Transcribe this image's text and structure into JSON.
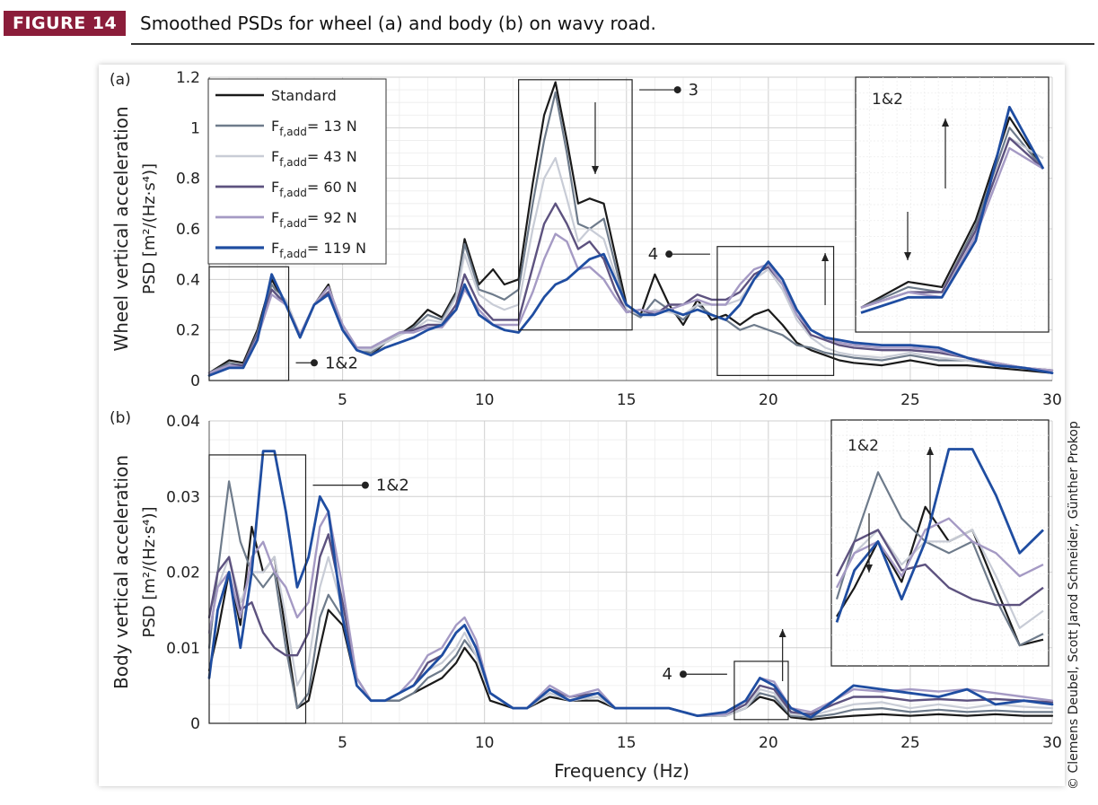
{
  "figure": {
    "tag": "FIGURE 14",
    "caption": "Smoothed PSDs for wheel (a) and body (b) on wavy road.",
    "credit": "© Clemens Deubel, Scott Jarod Schneider, Günther Prokop"
  },
  "colors": {
    "tag_background": "#8b1d3a",
    "standard": "#1a1a1a",
    "f13": "#6e7b8b",
    "f43": "#c8ccd6",
    "f60": "#5d527f",
    "f92": "#a59ac4",
    "f119": "#1f4da1"
  },
  "legend": [
    {
      "main": "Standard",
      "sub": "",
      "tail": ""
    },
    {
      "main": "F",
      "sub": "f,add",
      "tail": "= 13 N"
    },
    {
      "main": "F",
      "sub": "f,add",
      "tail": "= 43 N"
    },
    {
      "main": "F",
      "sub": "f,add",
      "tail": "= 60 N"
    },
    {
      "main": "F",
      "sub": "f,add",
      "tail": "= 92 N"
    },
    {
      "main": "F",
      "sub": "f,add",
      "tail": "= 119 N"
    }
  ],
  "chart_data": [
    {
      "type": "line",
      "panel_label": "(a)",
      "ylabel_line1": "Wheel vertical acceleration",
      "ylabel_line2": "PSD [m²/(Hz·s⁴)]",
      "xlabel": "",
      "xlim": [
        0.3,
        30
      ],
      "ylim": [
        0,
        1.2
      ],
      "xticks": [
        5,
        10,
        15,
        20,
        25,
        30
      ],
      "yticks": [
        0,
        0.2,
        0.4,
        0.6,
        0.8,
        1,
        1.2
      ],
      "ytick_labels": [
        "0",
        "0.2",
        "0.4",
        "0.6",
        "0.8",
        "1",
        "1.2"
      ],
      "grid": true,
      "legend_position": "top-left",
      "x": [
        0.3,
        1,
        1.5,
        2,
        2.5,
        3,
        3.5,
        4,
        4.5,
        5,
        5.5,
        6,
        6.5,
        7,
        7.5,
        8,
        8.5,
        9,
        9.3,
        9.8,
        10.3,
        10.7,
        11.2,
        11.7,
        12.1,
        12.5,
        12.9,
        13.3,
        13.7,
        14.2,
        14.6,
        15,
        15.5,
        16,
        16.5,
        17,
        17.5,
        18,
        18.5,
        19,
        19.5,
        20,
        20.5,
        21,
        21.5,
        22,
        22.5,
        23,
        24,
        25,
        26,
        27,
        28,
        29,
        30
      ],
      "series": [
        {
          "name": "Standard",
          "values": [
            0.03,
            0.08,
            0.07,
            0.2,
            0.4,
            0.3,
            0.17,
            0.3,
            0.38,
            0.2,
            0.12,
            0.1,
            0.15,
            0.18,
            0.22,
            0.28,
            0.25,
            0.35,
            0.56,
            0.38,
            0.44,
            0.38,
            0.4,
            0.78,
            1.05,
            1.18,
            0.95,
            0.7,
            0.72,
            0.7,
            0.5,
            0.3,
            0.26,
            0.42,
            0.3,
            0.22,
            0.32,
            0.24,
            0.26,
            0.22,
            0.26,
            0.28,
            0.22,
            0.15,
            0.12,
            0.1,
            0.08,
            0.07,
            0.06,
            0.08,
            0.06,
            0.06,
            0.05,
            0.04,
            0.03
          ]
        },
        {
          "name": "Ff,add = 13 N",
          "values": [
            0.03,
            0.07,
            0.06,
            0.19,
            0.38,
            0.3,
            0.17,
            0.3,
            0.37,
            0.2,
            0.12,
            0.11,
            0.15,
            0.18,
            0.21,
            0.26,
            0.24,
            0.34,
            0.54,
            0.36,
            0.34,
            0.32,
            0.36,
            0.7,
            0.95,
            1.14,
            0.9,
            0.62,
            0.6,
            0.64,
            0.46,
            0.28,
            0.25,
            0.32,
            0.28,
            0.24,
            0.3,
            0.26,
            0.24,
            0.2,
            0.22,
            0.2,
            0.18,
            0.14,
            0.13,
            0.11,
            0.1,
            0.09,
            0.08,
            0.1,
            0.08,
            0.08,
            0.06,
            0.05,
            0.04
          ]
        },
        {
          "name": "Ff,add = 43 N",
          "values": [
            0.03,
            0.06,
            0.06,
            0.18,
            0.36,
            0.32,
            0.18,
            0.3,
            0.37,
            0.22,
            0.12,
            0.12,
            0.15,
            0.18,
            0.2,
            0.24,
            0.23,
            0.33,
            0.5,
            0.34,
            0.3,
            0.28,
            0.3,
            0.6,
            0.8,
            0.88,
            0.72,
            0.55,
            0.6,
            0.56,
            0.42,
            0.28,
            0.26,
            0.28,
            0.27,
            0.26,
            0.3,
            0.3,
            0.3,
            0.32,
            0.4,
            0.44,
            0.36,
            0.24,
            0.17,
            0.13,
            0.11,
            0.1,
            0.09,
            0.11,
            0.09,
            0.08,
            0.06,
            0.05,
            0.04
          ]
        },
        {
          "name": "Ff,add = 60 N",
          "values": [
            0.03,
            0.06,
            0.06,
            0.18,
            0.36,
            0.3,
            0.18,
            0.3,
            0.35,
            0.22,
            0.13,
            0.13,
            0.16,
            0.19,
            0.2,
            0.22,
            0.22,
            0.3,
            0.42,
            0.3,
            0.24,
            0.24,
            0.24,
            0.45,
            0.62,
            0.7,
            0.62,
            0.52,
            0.55,
            0.48,
            0.36,
            0.27,
            0.28,
            0.26,
            0.3,
            0.3,
            0.34,
            0.32,
            0.32,
            0.35,
            0.42,
            0.45,
            0.38,
            0.26,
            0.18,
            0.16,
            0.14,
            0.13,
            0.12,
            0.12,
            0.11,
            0.09,
            0.07,
            0.05,
            0.04
          ]
        },
        {
          "name": "Ff,add = 92 N",
          "values": [
            0.03,
            0.06,
            0.05,
            0.17,
            0.34,
            0.3,
            0.18,
            0.3,
            0.37,
            0.22,
            0.13,
            0.13,
            0.16,
            0.19,
            0.19,
            0.21,
            0.21,
            0.28,
            0.36,
            0.28,
            0.22,
            0.22,
            0.22,
            0.35,
            0.48,
            0.58,
            0.55,
            0.44,
            0.45,
            0.4,
            0.33,
            0.27,
            0.28,
            0.27,
            0.28,
            0.3,
            0.32,
            0.3,
            0.3,
            0.38,
            0.44,
            0.46,
            0.38,
            0.26,
            0.2,
            0.17,
            0.15,
            0.14,
            0.13,
            0.13,
            0.12,
            0.09,
            0.07,
            0.05,
            0.04
          ]
        },
        {
          "name": "Ff,add = 119 N",
          "values": [
            0.02,
            0.05,
            0.05,
            0.16,
            0.42,
            0.3,
            0.17,
            0.3,
            0.34,
            0.2,
            0.12,
            0.1,
            0.13,
            0.15,
            0.17,
            0.2,
            0.22,
            0.28,
            0.38,
            0.26,
            0.22,
            0.2,
            0.19,
            0.26,
            0.33,
            0.38,
            0.4,
            0.44,
            0.48,
            0.5,
            0.4,
            0.3,
            0.26,
            0.26,
            0.28,
            0.26,
            0.28,
            0.26,
            0.24,
            0.3,
            0.4,
            0.47,
            0.4,
            0.28,
            0.2,
            0.17,
            0.16,
            0.15,
            0.14,
            0.14,
            0.13,
            0.09,
            0.06,
            0.05,
            0.03
          ]
        }
      ],
      "annotations": [
        {
          "label": "1&2",
          "box": [
            0.3,
            3.1,
            0,
            0.45
          ],
          "point": [
            4,
            0.07
          ]
        },
        {
          "label": "3",
          "box": [
            11.2,
            15.2,
            0.2,
            1.19
          ],
          "point": [
            16.8,
            1.15
          ]
        },
        {
          "label": "4",
          "box": [
            18.2,
            22.3,
            0.02,
            0.53
          ],
          "point": [
            16.5,
            0.5
          ]
        }
      ],
      "inset_label": "1&2"
    },
    {
      "type": "line",
      "panel_label": "(b)",
      "ylabel_line1": "Body vertical acceleration",
      "ylabel_line2": "PSD [m²/(Hz·s⁴)]",
      "xlabel": "Frequency (Hz)",
      "xlim": [
        0.3,
        30
      ],
      "ylim": [
        0,
        0.04
      ],
      "xticks": [
        5,
        10,
        15,
        20,
        25,
        30
      ],
      "yticks": [
        0,
        0.01,
        0.02,
        0.03,
        0.04
      ],
      "ytick_labels": [
        "0",
        "0.01",
        "0.02",
        "0.03",
        "0.04"
      ],
      "grid": true,
      "x": [
        0.3,
        0.6,
        1,
        1.4,
        1.8,
        2.2,
        2.6,
        3,
        3.4,
        3.8,
        4.2,
        4.5,
        5,
        5.5,
        6,
        6.5,
        7,
        7.5,
        8,
        8.5,
        9,
        9.3,
        9.7,
        10.2,
        11,
        11.5,
        12.3,
        13,
        14,
        14.6,
        15.5,
        16.5,
        17.5,
        18.5,
        19.2,
        19.7,
        20.2,
        20.8,
        21.5,
        22.3,
        23,
        24,
        25,
        26,
        27,
        28,
        29,
        30
      ],
      "series": [
        {
          "name": "Standard",
          "values": [
            0.007,
            0.012,
            0.02,
            0.013,
            0.026,
            0.02,
            0.022,
            0.012,
            0.002,
            0.003,
            0.01,
            0.015,
            0.013,
            0.005,
            0.003,
            0.003,
            0.003,
            0.004,
            0.005,
            0.006,
            0.008,
            0.01,
            0.008,
            0.003,
            0.002,
            0.002,
            0.0035,
            0.003,
            0.003,
            0.002,
            0.002,
            0.002,
            0.001,
            0.001,
            0.002,
            0.0035,
            0.003,
            0.0008,
            0.0005,
            0.0008,
            0.001,
            0.0012,
            0.001,
            0.0012,
            0.001,
            0.0012,
            0.001,
            0.001
          ]
        },
        {
          "name": "Ff,add = 13 N",
          "values": [
            0.01,
            0.02,
            0.032,
            0.024,
            0.02,
            0.018,
            0.02,
            0.01,
            0.002,
            0.004,
            0.014,
            0.017,
            0.014,
            0.005,
            0.003,
            0.003,
            0.003,
            0.004,
            0.006,
            0.007,
            0.009,
            0.011,
            0.009,
            0.004,
            0.002,
            0.002,
            0.004,
            0.003,
            0.0035,
            0.002,
            0.002,
            0.002,
            0.001,
            0.001,
            0.002,
            0.004,
            0.0035,
            0.001,
            0.0008,
            0.0012,
            0.0018,
            0.002,
            0.0015,
            0.0018,
            0.0015,
            0.0017,
            0.0015,
            0.0015
          ]
        },
        {
          "name": "Ff,add = 43 N",
          "values": [
            0.012,
            0.018,
            0.022,
            0.016,
            0.02,
            0.02,
            0.022,
            0.014,
            0.005,
            0.008,
            0.018,
            0.022,
            0.015,
            0.006,
            0.003,
            0.003,
            0.004,
            0.005,
            0.007,
            0.008,
            0.01,
            0.012,
            0.009,
            0.004,
            0.002,
            0.002,
            0.004,
            0.003,
            0.0035,
            0.002,
            0.002,
            0.002,
            0.001,
            0.001,
            0.002,
            0.0045,
            0.004,
            0.0012,
            0.001,
            0.0018,
            0.0025,
            0.0028,
            0.002,
            0.0025,
            0.002,
            0.0025,
            0.0022,
            0.002
          ]
        },
        {
          "name": "Ff,add = 60 N",
          "values": [
            0.014,
            0.02,
            0.022,
            0.015,
            0.016,
            0.012,
            0.01,
            0.009,
            0.009,
            0.012,
            0.022,
            0.025,
            0.016,
            0.006,
            0.003,
            0.003,
            0.004,
            0.005,
            0.008,
            0.009,
            0.012,
            0.013,
            0.01,
            0.004,
            0.002,
            0.002,
            0.0045,
            0.0035,
            0.004,
            0.002,
            0.002,
            0.002,
            0.001,
            0.0012,
            0.0025,
            0.005,
            0.0045,
            0.0015,
            0.0012,
            0.0025,
            0.0035,
            0.0035,
            0.003,
            0.0032,
            0.003,
            0.0032,
            0.003,
            0.0028
          ]
        },
        {
          "name": "Ff,add = 92 N",
          "values": [
            0.012,
            0.018,
            0.02,
            0.014,
            0.022,
            0.024,
            0.02,
            0.018,
            0.014,
            0.016,
            0.026,
            0.028,
            0.018,
            0.006,
            0.003,
            0.003,
            0.004,
            0.006,
            0.009,
            0.01,
            0.013,
            0.014,
            0.011,
            0.004,
            0.002,
            0.002,
            0.005,
            0.0035,
            0.0045,
            0.002,
            0.002,
            0.002,
            0.001,
            0.0012,
            0.003,
            0.006,
            0.0055,
            0.002,
            0.0015,
            0.003,
            0.0045,
            0.0042,
            0.0045,
            0.0042,
            0.0045,
            0.004,
            0.0035,
            0.003
          ]
        },
        {
          "name": "Ff,add = 119 N",
          "values": [
            0.006,
            0.015,
            0.02,
            0.01,
            0.02,
            0.036,
            0.036,
            0.028,
            0.018,
            0.022,
            0.03,
            0.028,
            0.014,
            0.005,
            0.003,
            0.003,
            0.004,
            0.005,
            0.007,
            0.009,
            0.012,
            0.013,
            0.01,
            0.004,
            0.002,
            0.002,
            0.0045,
            0.003,
            0.004,
            0.002,
            0.002,
            0.002,
            0.001,
            0.0015,
            0.003,
            0.006,
            0.005,
            0.002,
            0.0008,
            0.003,
            0.005,
            0.0045,
            0.004,
            0.0035,
            0.0045,
            0.0025,
            0.003,
            0.0025
          ]
        }
      ],
      "annotations": [
        {
          "label": "1&2",
          "box": [
            0.3,
            3.7,
            0,
            0.0355
          ],
          "point": [
            5.8,
            0.0315
          ]
        },
        {
          "label": "4",
          "box": [
            18.8,
            20.7,
            0.0005,
            0.0082
          ],
          "point": [
            17,
            0.0065
          ]
        }
      ],
      "inset_label": "1&2"
    }
  ]
}
